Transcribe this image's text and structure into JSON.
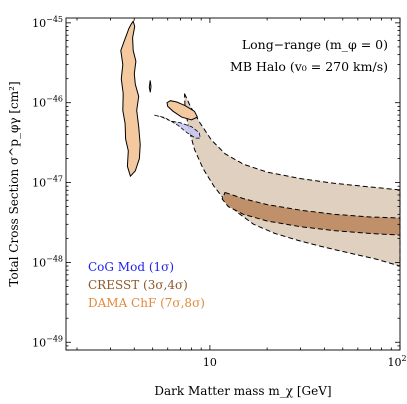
{
  "chart_data": {
    "type": "area",
    "xlabel": "Dark Matter mass   m_χ  [GeV]",
    "ylabel": "Total Cross Section  σ^p_φγ [cm²]",
    "x_scale": "log",
    "y_scale": "log",
    "xlim": [
      1.75,
      100
    ],
    "ylim": [
      8e-50,
      1.15e-45
    ],
    "x_ticks": [
      {
        "value": 10,
        "label": "10"
      },
      {
        "value": 100,
        "label": "10",
        "exp": "2"
      }
    ],
    "y_ticks": [
      {
        "value": 1e-45,
        "label": "10",
        "exp": "−45"
      },
      {
        "value": 1e-46,
        "label": "10",
        "exp": "−46"
      },
      {
        "value": 1e-47,
        "label": "10",
        "exp": "−47"
      },
      {
        "value": 1e-48,
        "label": "10",
        "exp": "−48"
      },
      {
        "value": 1e-49,
        "label": "10",
        "exp": "−49"
      }
    ],
    "annotations": [
      "Long−range (m_φ = 0)",
      "MB Halo (v₀ = 270 km/s)"
    ],
    "regions": [
      {
        "name": "CoG Mod (1σ)",
        "color": "#3333ee",
        "fill": "#c8c8f2",
        "contours": [
          [
            [
              5.1,
              7e-47
            ],
            [
              5.8,
              6.5e-47
            ],
            [
              6.8,
              5.2e-47
            ],
            [
              7.6,
              4.2e-47
            ],
            [
              8.4,
              3.6e-47
            ],
            [
              8.9,
              3.6e-47
            ],
            [
              8.8,
              4.2e-47
            ],
            [
              8,
              5e-47
            ],
            [
              7,
              5.6e-47
            ],
            [
              6.2,
              5.9e-47
            ],
            [
              5.6,
              6.6e-47
            ]
          ]
        ]
      },
      {
        "name": "CRESST (3σ,4σ)",
        "color": "#8b5a2b",
        "fill_outer": "#e0d0c0",
        "fill_inner": "#c0906a",
        "contours_outer": [
          [
            [
              7.35,
              1.3e-46
            ],
            [
              7.9,
              9e-47
            ],
            [
              8.9,
              5.5e-47
            ],
            [
              10.2,
              3.4e-47
            ],
            [
              12,
              2.3e-47
            ],
            [
              15,
              1.7e-47
            ],
            [
              20,
              1.35e-47
            ],
            [
              30,
              1.12e-47
            ],
            [
              45,
              9.8e-48
            ],
            [
              70,
              8.8e-48
            ],
            [
              100,
              8.1e-48
            ],
            [
              100,
              9e-49
            ],
            [
              75,
              1.1e-48
            ],
            [
              55,
              1.3e-48
            ],
            [
              40,
              1.55e-48
            ],
            [
              30,
              1.85e-48
            ],
            [
              22,
              2.3e-48
            ],
            [
              17,
              3e-48
            ],
            [
              14,
              4.2e-48
            ],
            [
              12,
              6e-48
            ],
            [
              10.5,
              9e-48
            ],
            [
              9.2,
              1.5e-47
            ],
            [
              8.3,
              2.6e-47
            ],
            [
              7.7,
              5e-47
            ],
            [
              7.4,
              9e-47
            ]
          ]
        ],
        "contours_inner": [
          [
            [
              12,
              7.5e-48
            ],
            [
              15,
              6.3e-48
            ],
            [
              20,
              5.3e-48
            ],
            [
              30,
              4.5e-48
            ],
            [
              45,
              4e-48
            ],
            [
              70,
              3.7e-48
            ],
            [
              100,
              3.6e-48
            ],
            [
              100,
              2.2e-48
            ],
            [
              70,
              2.3e-48
            ],
            [
              45,
              2.5e-48
            ],
            [
              30,
              2.8e-48
            ],
            [
              20,
              3.3e-48
            ],
            [
              15,
              4e-48
            ],
            [
              12.5,
              5e-48
            ],
            [
              11.6,
              6.2e-48
            ]
          ]
        ]
      },
      {
        "name": "DAMA ChF (7σ,8σ)",
        "color": "#e08a3c",
        "fill": "#f4c9a0",
        "contours": [
          [
            [
              3.55,
              6e-46
            ],
            [
              3.75,
              8.5e-46
            ],
            [
              3.85,
              9.6e-46
            ],
            [
              3.95,
              1.05e-45
            ],
            [
              4.02,
              9e-46
            ],
            [
              3.92,
              6.5e-46
            ],
            [
              3.95,
              4.5e-46
            ],
            [
              4.08,
              3.3e-46
            ],
            [
              4.0,
              2.3e-46
            ],
            [
              4.05,
              1.7e-46
            ],
            [
              4.22,
              1.2e-46
            ],
            [
              4.12,
              8e-47
            ],
            [
              4.22,
              5e-47
            ],
            [
              4.3,
              3e-47
            ],
            [
              4.26,
              2e-47
            ],
            [
              4.05,
              1.4e-47
            ],
            [
              3.82,
              1.2e-47
            ],
            [
              3.68,
              1.6e-47
            ],
            [
              3.72,
              2.5e-47
            ],
            [
              3.6,
              3.5e-47
            ],
            [
              3.58,
              5.5e-47
            ],
            [
              3.48,
              8e-47
            ],
            [
              3.5,
              1.3e-46
            ],
            [
              3.42,
              2e-46
            ],
            [
              3.48,
              3e-46
            ],
            [
              3.4,
              4.5e-46
            ]
          ],
          [
            [
              4.8,
              1.55e-46
            ],
            [
              4.85,
              1.9e-46
            ],
            [
              4.9,
              1.6e-46
            ],
            [
              4.86,
              1.35e-46
            ]
          ],
          [
            [
              6.0,
              9e-47
            ],
            [
              6.4,
              7.8e-47
            ],
            [
              7.1,
              6.6e-47
            ],
            [
              8.0,
              6.1e-47
            ],
            [
              8.6,
              6.6e-47
            ],
            [
              8.3,
              7.8e-47
            ],
            [
              7.4,
              9.2e-47
            ],
            [
              6.7,
              1.02e-46
            ],
            [
              6.2,
              1.06e-46
            ],
            [
              5.95,
              1e-46
            ]
          ]
        ]
      }
    ],
    "legend": {
      "position": "bottom-left",
      "entries": [
        {
          "label": "CoG Mod  (1σ)",
          "color": "#2222ee"
        },
        {
          "label": "CRESST  (3σ,4σ)",
          "color": "#8b5a2b"
        },
        {
          "label": "DAMA ChF (7σ,8σ)",
          "color": "#e08a3c"
        }
      ]
    },
    "grid": false
  }
}
